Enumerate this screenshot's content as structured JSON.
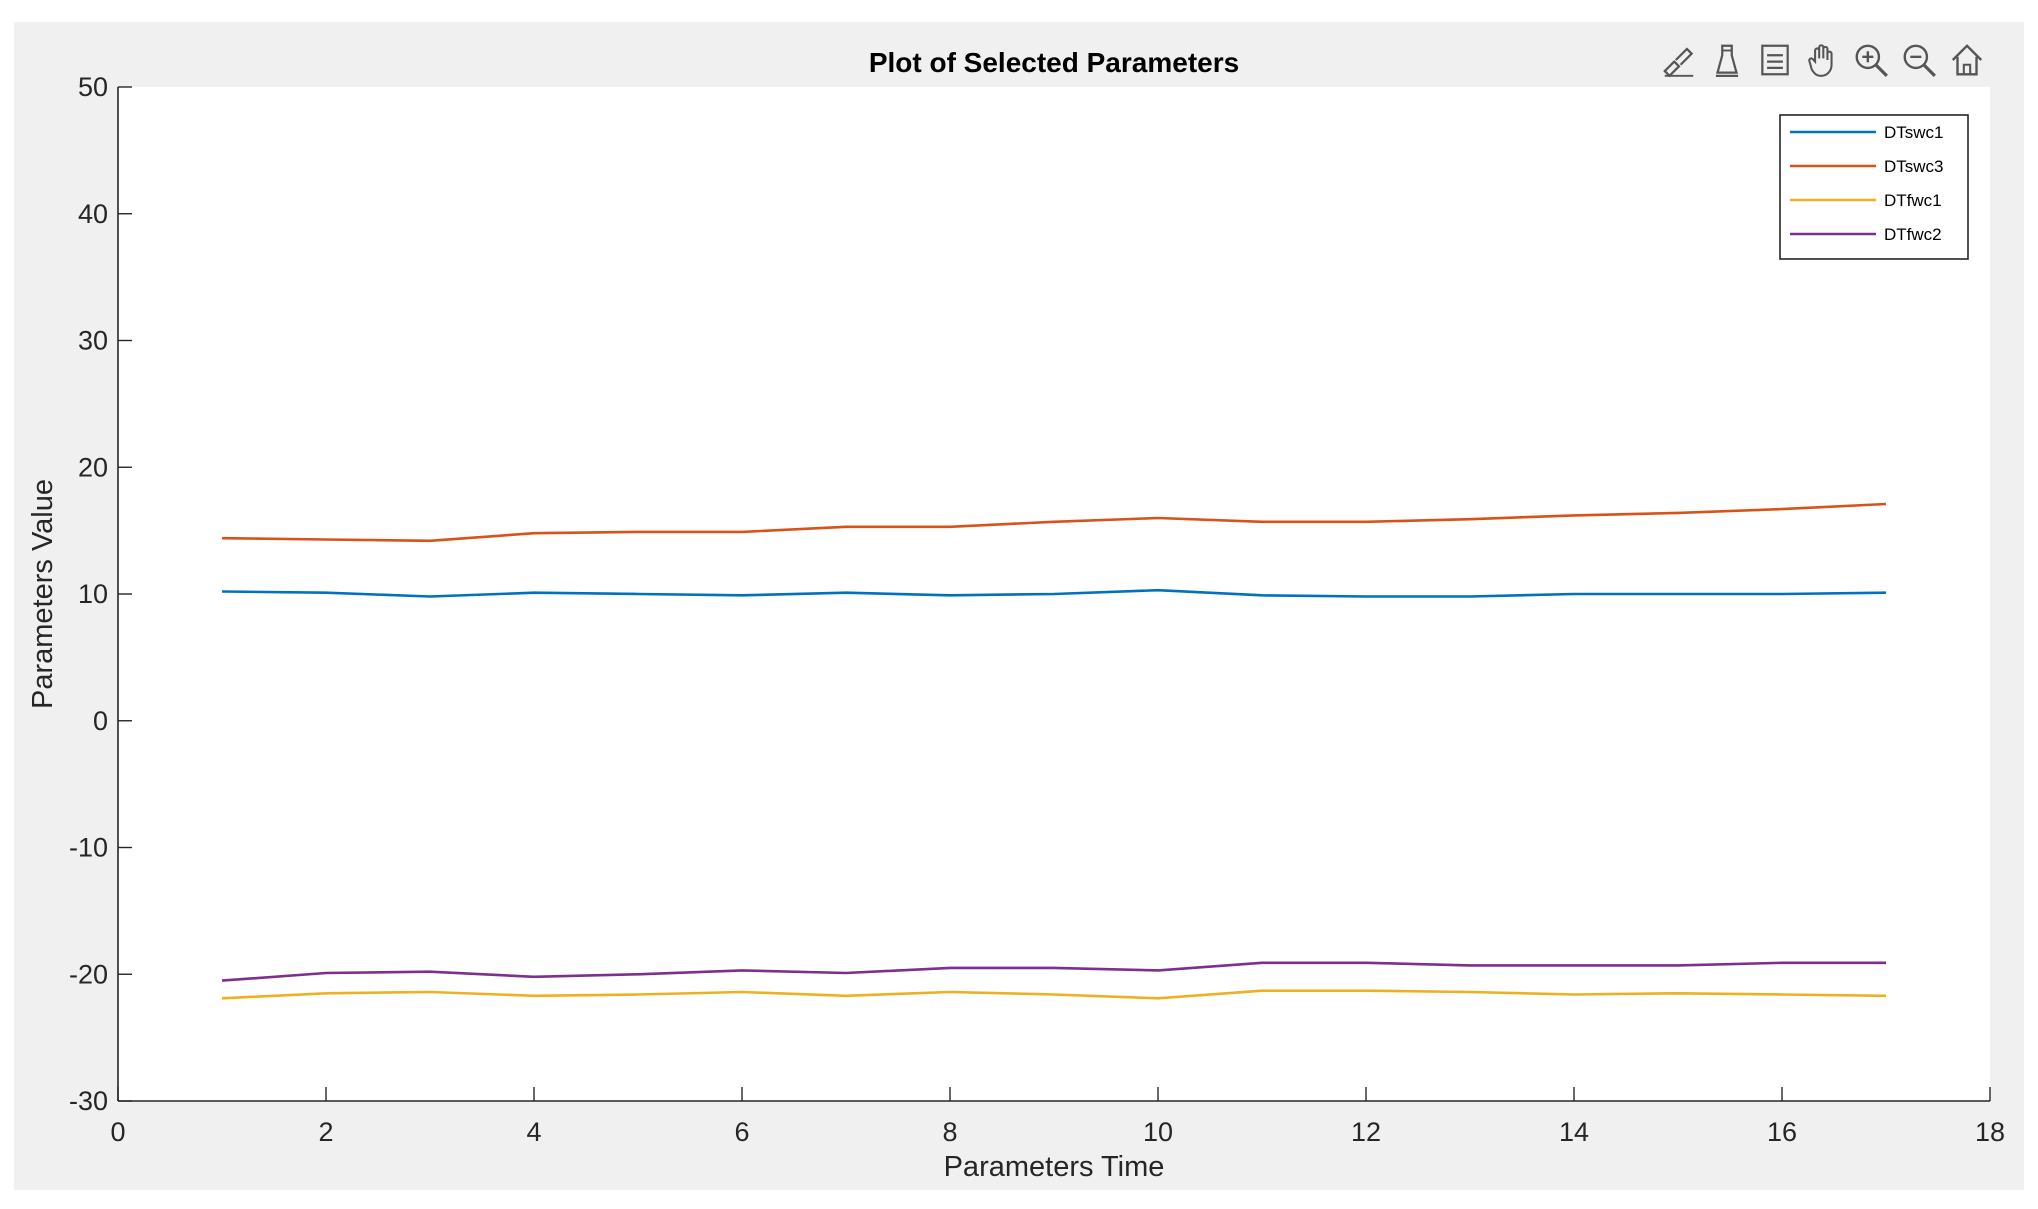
{
  "window": {
    "background": "#f0f0f0"
  },
  "toolbar": {
    "buttons": [
      {
        "icon": "brush-edit-icon"
      },
      {
        "icon": "data-tip-icon"
      },
      {
        "icon": "legend-icon"
      },
      {
        "icon": "pan-hand-icon"
      },
      {
        "icon": "zoom-in-icon"
      },
      {
        "icon": "zoom-out-icon"
      },
      {
        "icon": "home-restore-icon"
      }
    ]
  },
  "chart_data": {
    "type": "line",
    "title": "Plot of Selected Parameters",
    "xlabel": "Parameters Time",
    "ylabel": "Parameters Value",
    "xlim": [
      0,
      18
    ],
    "ylim": [
      -30,
      50
    ],
    "xticks": [
      0,
      2,
      4,
      6,
      8,
      10,
      12,
      14,
      16,
      18
    ],
    "yticks": [
      -30,
      -20,
      -10,
      0,
      10,
      20,
      30,
      40,
      50
    ],
    "grid": false,
    "legend_position": "top-right",
    "x": [
      1,
      2,
      3,
      4,
      5,
      6,
      7,
      8,
      9,
      10,
      11,
      12,
      13,
      14,
      15,
      16,
      17
    ],
    "series": [
      {
        "name": "DTswc1",
        "color": "#0072bd",
        "values": [
          10.2,
          10.1,
          9.8,
          10.1,
          10.0,
          9.9,
          10.1,
          9.9,
          10.0,
          10.3,
          9.9,
          9.8,
          9.8,
          10.0,
          10.0,
          10.0,
          10.1
        ]
      },
      {
        "name": "DTswc3",
        "color": "#d95319",
        "values": [
          14.4,
          14.3,
          14.2,
          14.8,
          14.9,
          14.9,
          15.3,
          15.3,
          15.7,
          16.0,
          15.7,
          15.7,
          15.9,
          16.2,
          16.4,
          16.7,
          17.1
        ]
      },
      {
        "name": "DTfwc1",
        "color": "#edb120",
        "values": [
          -21.9,
          -21.5,
          -21.4,
          -21.7,
          -21.6,
          -21.4,
          -21.7,
          -21.4,
          -21.6,
          -21.9,
          -21.3,
          -21.3,
          -21.4,
          -21.6,
          -21.5,
          -21.6,
          -21.7
        ]
      },
      {
        "name": "DTfwc2",
        "color": "#7e2f8e",
        "values": [
          -20.5,
          -19.9,
          -19.8,
          -20.2,
          -20.0,
          -19.7,
          -19.9,
          -19.5,
          -19.5,
          -19.7,
          -19.1,
          -19.1,
          -19.3,
          -19.3,
          -19.3,
          -19.1,
          -19.1
        ]
      }
    ]
  }
}
